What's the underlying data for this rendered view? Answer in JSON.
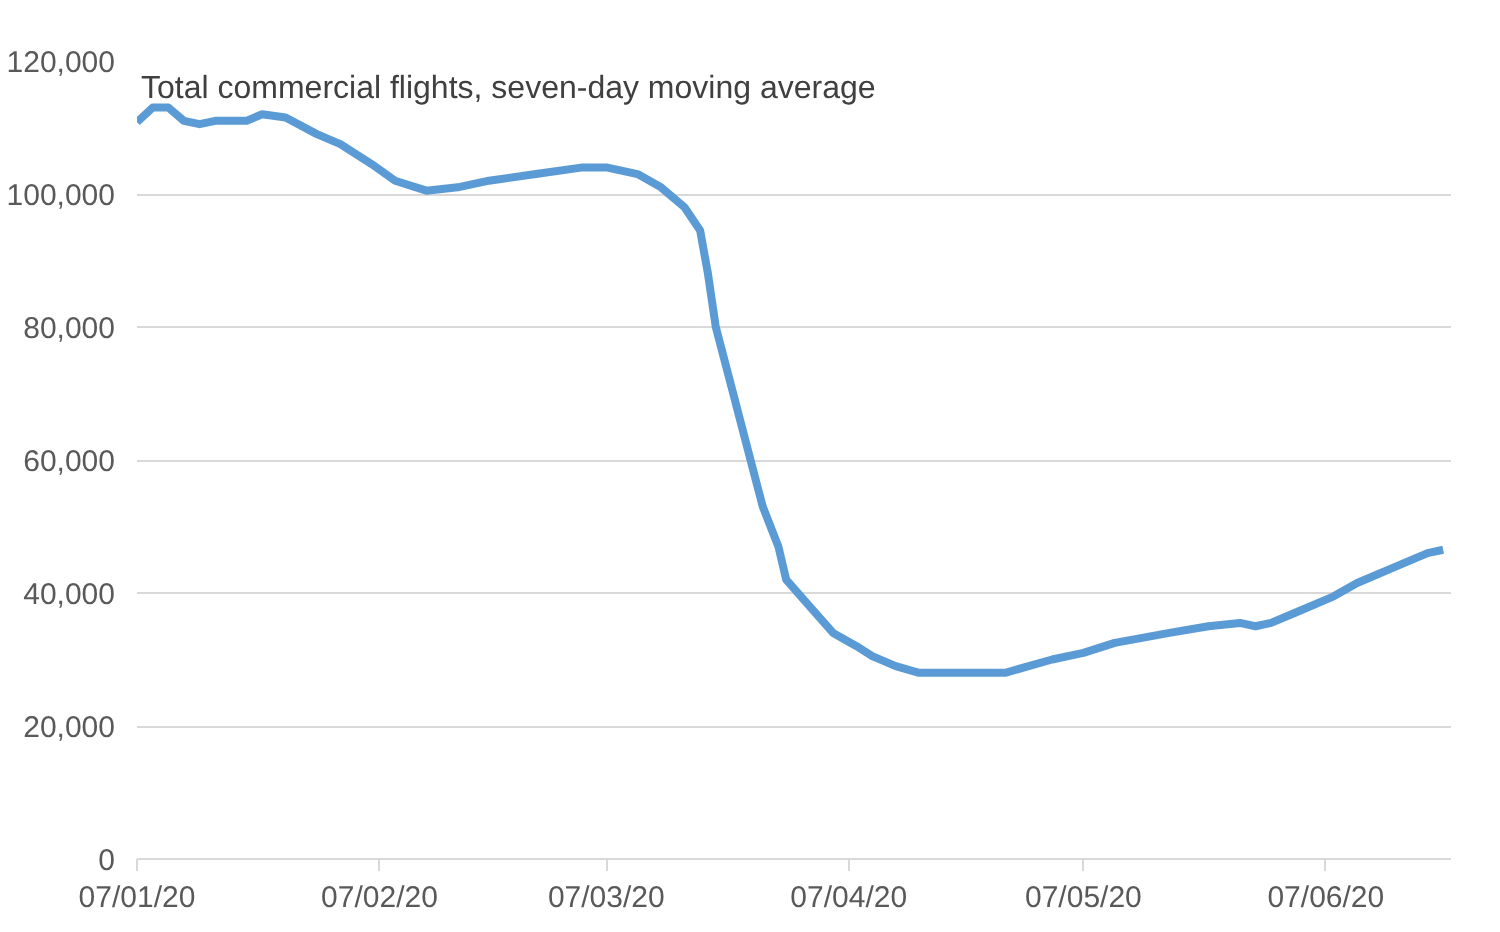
{
  "chart_data": {
    "type": "line",
    "title": "Total commercial flights, seven-day moving average",
    "x": [
      "2020-01-07",
      "2020-01-09",
      "2020-01-11",
      "2020-01-13",
      "2020-01-15",
      "2020-01-17",
      "2020-01-21",
      "2020-01-23",
      "2020-01-26",
      "2020-01-30",
      "2020-02-02",
      "2020-02-06",
      "2020-02-09",
      "2020-02-13",
      "2020-02-17",
      "2020-02-21",
      "2020-02-27",
      "2020-03-04",
      "2020-03-07",
      "2020-03-11",
      "2020-03-14",
      "2020-03-17",
      "2020-03-19",
      "2020-03-20",
      "2020-03-21",
      "2020-03-23",
      "2020-03-25",
      "2020-03-27",
      "2020-03-29",
      "2020-03-30",
      "2020-04-02",
      "2020-04-05",
      "2020-04-08",
      "2020-04-10",
      "2020-04-13",
      "2020-04-16",
      "2020-04-22",
      "2020-04-27",
      "2020-04-30",
      "2020-05-03",
      "2020-05-07",
      "2020-05-11",
      "2020-05-18",
      "2020-05-23",
      "2020-05-27",
      "2020-05-29",
      "2020-05-31",
      "2020-06-03",
      "2020-06-08",
      "2020-06-11",
      "2020-06-16",
      "2020-06-20",
      "2020-06-22"
    ],
    "series": [
      {
        "color": "#5b9bd5",
        "values": [
          110800,
          113000,
          113000,
          111000,
          110500,
          111000,
          111000,
          112000,
          111500,
          109000,
          107500,
          104500,
          102000,
          100500,
          101000,
          102000,
          103000,
          104000,
          104000,
          103000,
          101000,
          98000,
          94500,
          88000,
          80000,
          71000,
          62000,
          53000,
          47000,
          42000,
          38000,
          34000,
          32000,
          30500,
          29000,
          28000,
          28000,
          28000,
          29000,
          30000,
          31000,
          32500,
          34000,
          35000,
          35500,
          35000,
          35500,
          37000,
          39500,
          41500,
          44000,
          46000,
          46500
        ]
      }
    ],
    "xlim": [
      "2020-01-07",
      "2020-06-23"
    ],
    "xticks": [
      {
        "value": "2020-01-07",
        "label": "07/01/20"
      },
      {
        "value": "2020-02-07",
        "label": "07/02/20"
      },
      {
        "value": "2020-03-07",
        "label": "07/03/20"
      },
      {
        "value": "2020-04-07",
        "label": "07/04/20"
      },
      {
        "value": "2020-05-07",
        "label": "07/05/20"
      },
      {
        "value": "2020-06-07",
        "label": "07/06/20"
      }
    ],
    "ylim": [
      0,
      120000
    ],
    "yticks": [
      {
        "value": 0,
        "label": "0"
      },
      {
        "value": 20000,
        "label": "20,000"
      },
      {
        "value": 40000,
        "label": "40,000"
      },
      {
        "value": 60000,
        "label": "60,000"
      },
      {
        "value": 80000,
        "label": "80,000"
      },
      {
        "value": 100000,
        "label": "100,000"
      },
      {
        "value": 120000,
        "label": "120,000"
      }
    ],
    "grid": "y",
    "marker": "none",
    "line_style": "solid"
  }
}
